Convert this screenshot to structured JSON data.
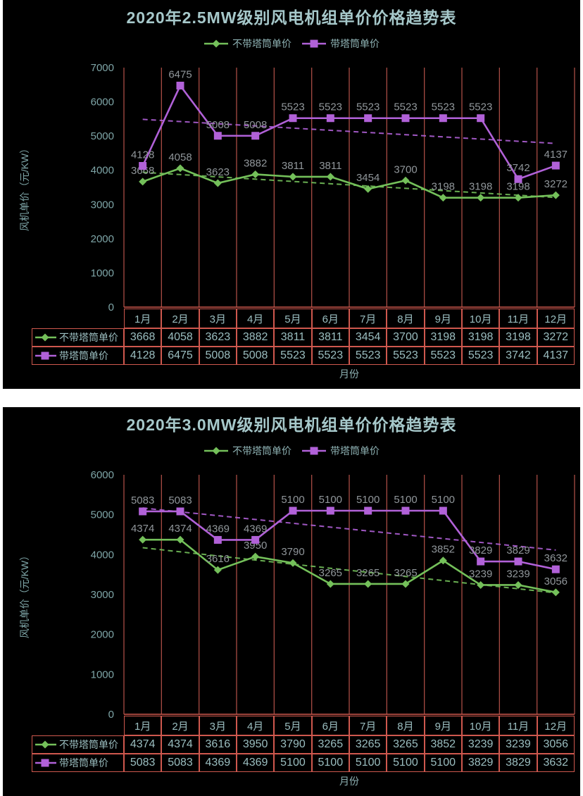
{
  "page": {
    "background": "#ffffff",
    "panel_background": "#000000"
  },
  "colors": {
    "title": "#a6c8ca",
    "axis_text": "#7ea5a7",
    "legend_text": "#8fb3b5",
    "table_text": "#9bbec0",
    "data_label": "#90969a",
    "gridline": "#a84c44",
    "table_border": "#cf584e",
    "series_green": "#74c05a",
    "series_purple": "#b161d8"
  },
  "chart_data": [
    {
      "type": "line",
      "title": "2020年2.5MW级别风电机组单价价格趋势表",
      "xlabel": "月份",
      "ylabel": "风机单价（元/KW）",
      "ylim": [
        0,
        7000
      ],
      "ystep": 1000,
      "grid": "vertical-only",
      "legend_position": "top",
      "trendlines": "linear-dashed-per-series",
      "categories": [
        "1月",
        "2月",
        "3月",
        "4月",
        "5月",
        "6月",
        "7月",
        "8月",
        "9月",
        "10月",
        "11月",
        "12月"
      ],
      "series": [
        {
          "name": "不带塔筒单价",
          "color": "#74c05a",
          "marker": "diamond",
          "values": [
            3668,
            4058,
            3623,
            3882,
            3811,
            3811,
            3454,
            3700,
            3198,
            3198,
            3198,
            3272
          ]
        },
        {
          "name": "带塔筒单价",
          "color": "#b161d8",
          "marker": "square",
          "values": [
            4128,
            6475,
            5008,
            5008,
            5523,
            5523,
            5523,
            5523,
            5523,
            5523,
            3742,
            4137
          ]
        }
      ]
    },
    {
      "type": "line",
      "title": "2020年3.0MW级别风电机组单价价格趋势表",
      "xlabel": "月份",
      "ylabel": "风机单价（元/KW）",
      "ylim": [
        0,
        6000
      ],
      "ystep": 1000,
      "grid": "vertical-only",
      "legend_position": "top",
      "trendlines": "linear-dashed-per-series",
      "categories": [
        "1月",
        "2月",
        "3月",
        "4月",
        "5月",
        "6月",
        "7月",
        "8月",
        "9月",
        "10月",
        "11月",
        "12月"
      ],
      "series": [
        {
          "name": "不带塔筒单价",
          "color": "#74c05a",
          "marker": "diamond",
          "values": [
            4374,
            4374,
            3616,
            3950,
            3790,
            3265,
            3265,
            3265,
            3852,
            3239,
            3239,
            3056
          ]
        },
        {
          "name": "带塔筒单价",
          "color": "#b161d8",
          "marker": "square",
          "values": [
            5083,
            5083,
            4369,
            4369,
            5100,
            5100,
            5100,
            5100,
            5100,
            3829,
            3829,
            3632
          ]
        }
      ]
    }
  ]
}
